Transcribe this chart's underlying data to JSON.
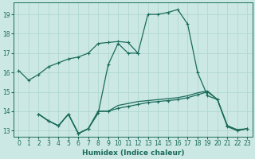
{
  "xlabel": "Humidex (Indice chaleur)",
  "bg_color": "#cce8e4",
  "grid_color": "#b0d8d0",
  "line_color": "#1a6b5a",
  "xlim": [
    -0.5,
    23.5
  ],
  "ylim": [
    12.7,
    19.6
  ],
  "xticks": [
    0,
    1,
    2,
    3,
    4,
    5,
    6,
    7,
    8,
    9,
    10,
    11,
    12,
    13,
    14,
    15,
    16,
    17,
    18,
    19,
    20,
    21,
    22,
    23
  ],
  "yticks": [
    13,
    14,
    15,
    16,
    17,
    18,
    19
  ],
  "line1_x": [
    0,
    1,
    2,
    3,
    4,
    5,
    6,
    7,
    8,
    9,
    10,
    11,
    12,
    13,
    14,
    15,
    16,
    17,
    18,
    19,
    20,
    21,
    22,
    23
  ],
  "line1_y": [
    16.1,
    15.6,
    15.9,
    16.3,
    16.5,
    16.7,
    16.8,
    17.0,
    17.5,
    17.55,
    17.6,
    17.55,
    17.0,
    19.0,
    19.0,
    19.1,
    19.25,
    18.5,
    16.0,
    14.8,
    14.6,
    13.2,
    13.0,
    13.1
  ],
  "line2_x": [
    2,
    3,
    4,
    5,
    6,
    7,
    8,
    9,
    10,
    11,
    12
  ],
  "line2_y": [
    13.85,
    13.5,
    13.25,
    13.85,
    12.85,
    13.1,
    13.9,
    16.4,
    17.5,
    17.0,
    17.0
  ],
  "line3_x": [
    2,
    3,
    4,
    5,
    6,
    7,
    8,
    9,
    10,
    11,
    12,
    13,
    14,
    15,
    16,
    17,
    18,
    19,
    20,
    21,
    22,
    23
  ],
  "line3_y": [
    13.85,
    13.5,
    13.25,
    13.85,
    12.85,
    13.1,
    14.0,
    14.0,
    14.15,
    14.25,
    14.35,
    14.45,
    14.5,
    14.55,
    14.6,
    14.7,
    14.85,
    15.0,
    14.6,
    13.25,
    13.0,
    13.1
  ],
  "line4_x": [
    2,
    3,
    4,
    5,
    6,
    7,
    8,
    9,
    10,
    11,
    12,
    13,
    14,
    15,
    16,
    17,
    18,
    19,
    20,
    21,
    22,
    23
  ],
  "line4_y": [
    13.85,
    13.5,
    13.25,
    13.85,
    12.85,
    13.1,
    14.0,
    14.0,
    14.3,
    14.4,
    14.5,
    14.55,
    14.6,
    14.65,
    14.7,
    14.8,
    14.95,
    15.05,
    14.6,
    13.25,
    13.05,
    13.1
  ]
}
